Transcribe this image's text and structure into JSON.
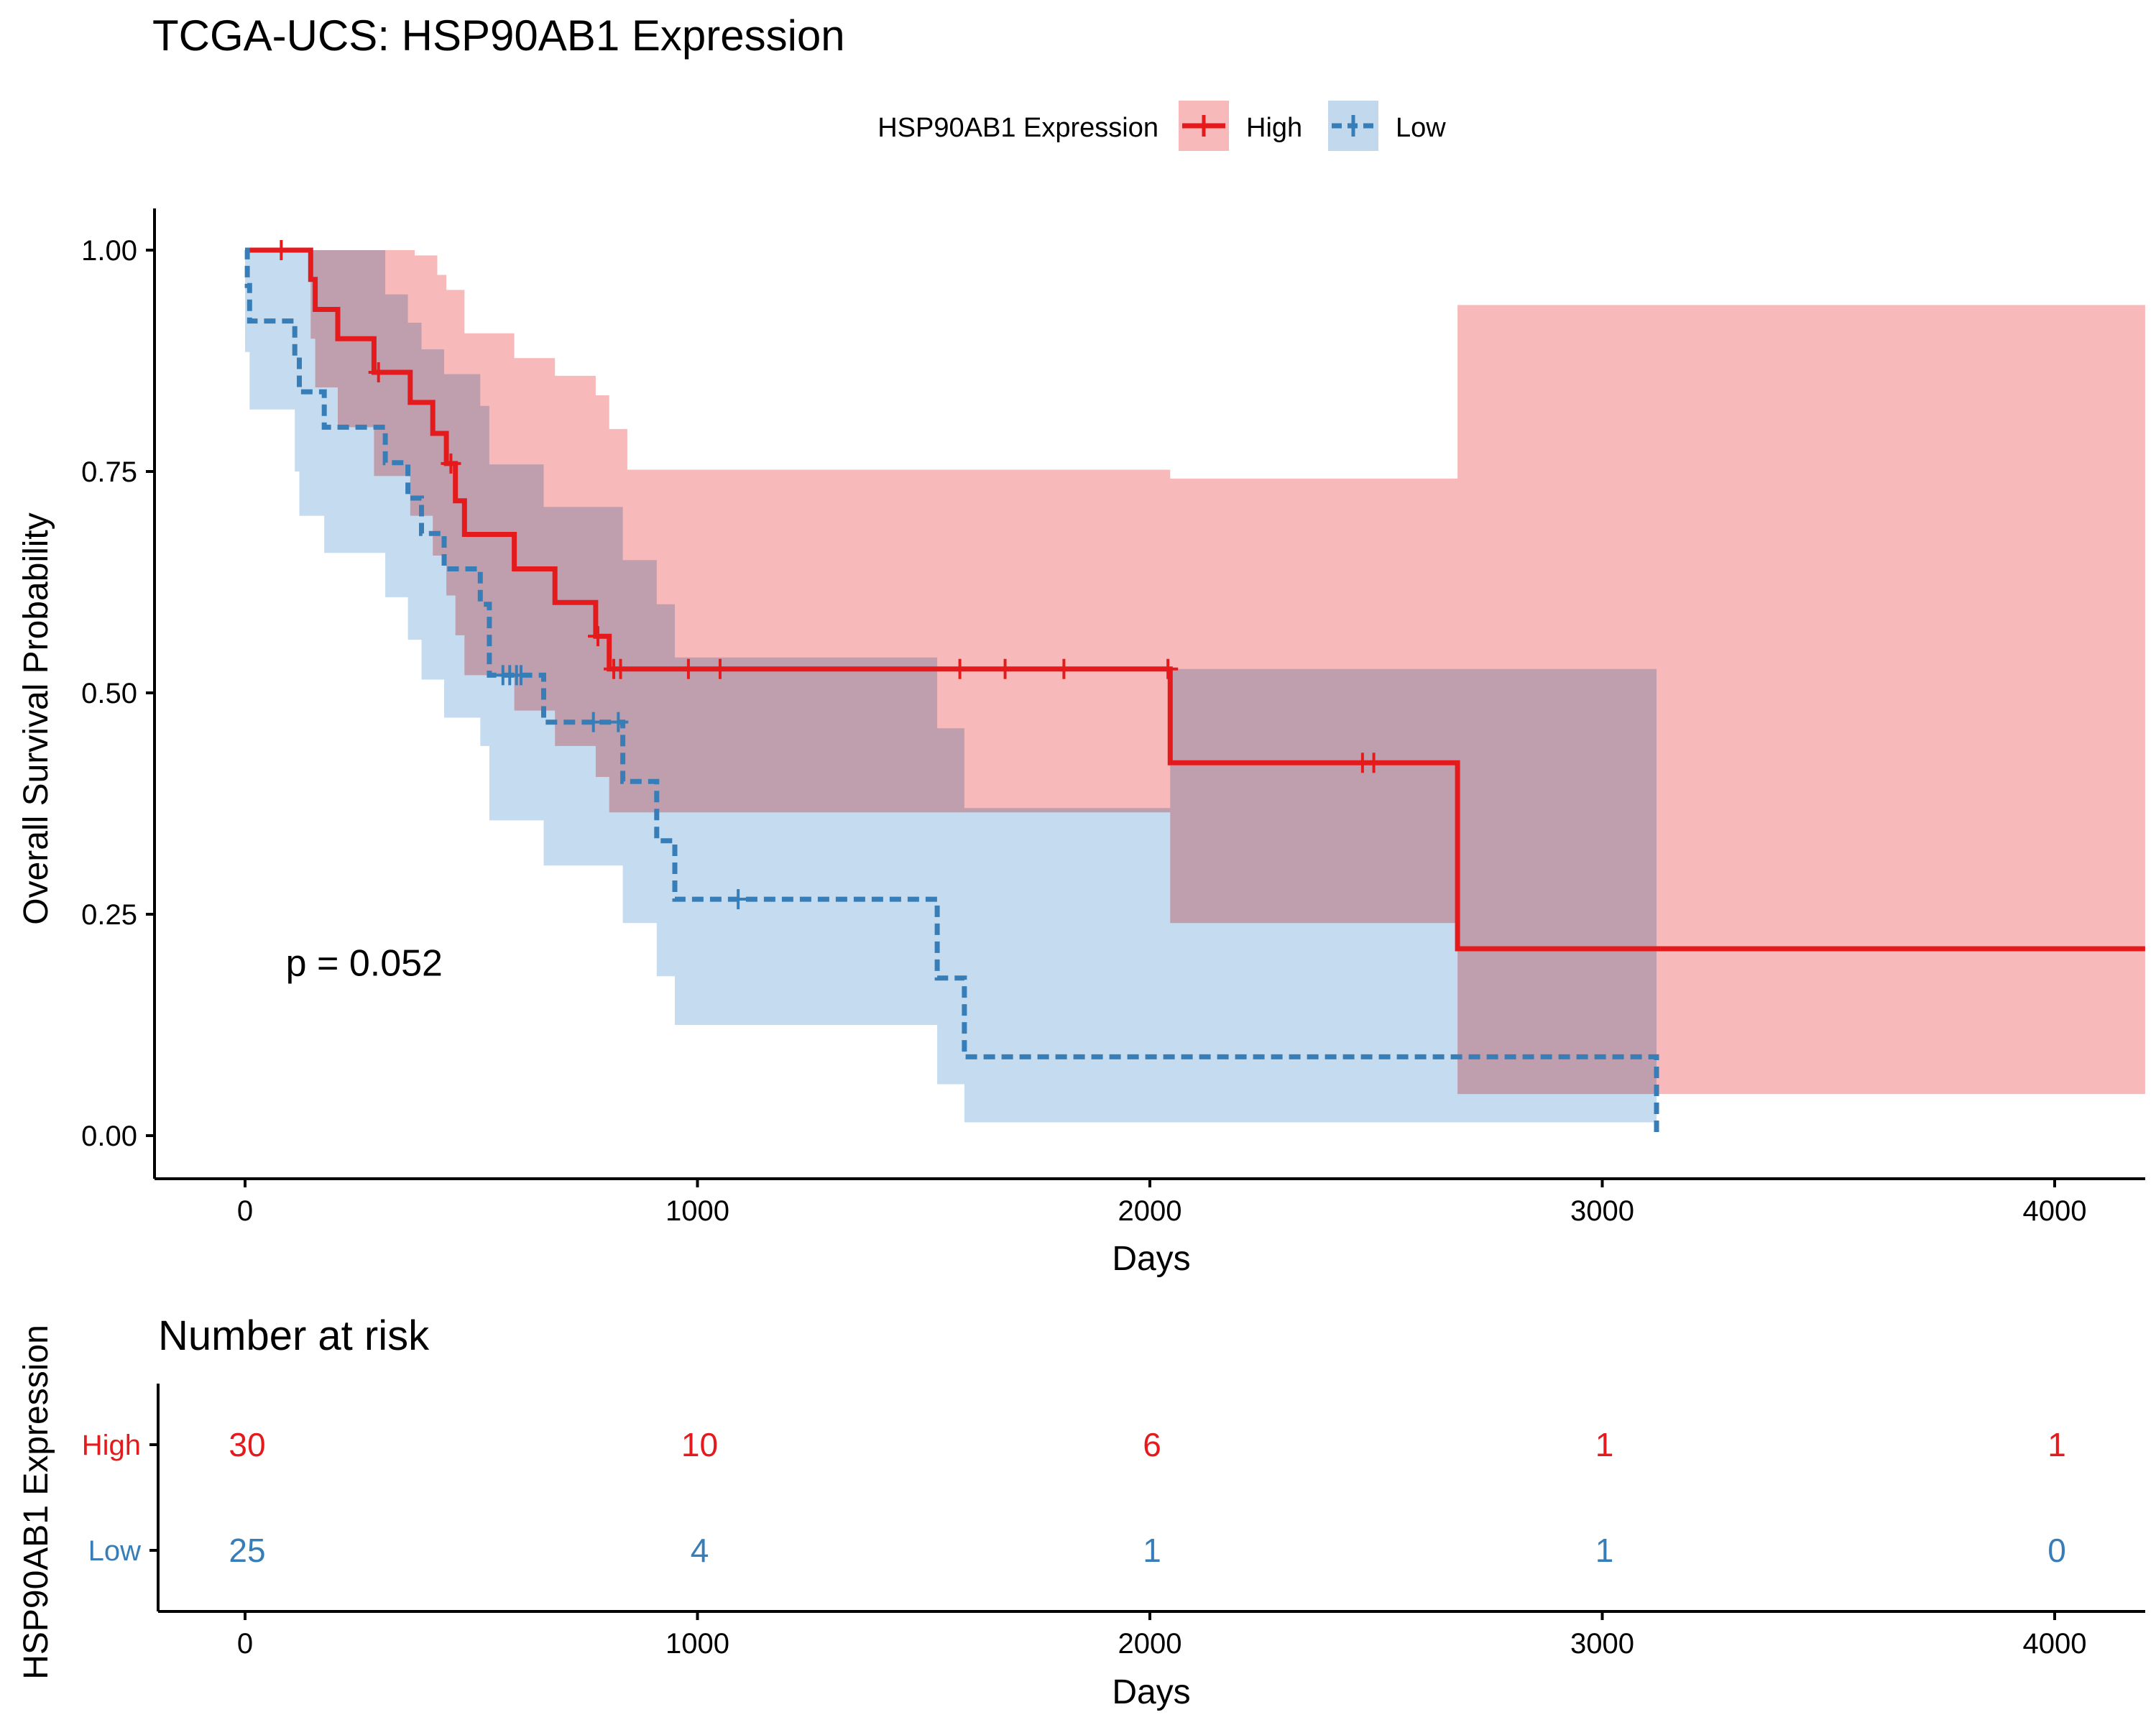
{
  "chart_data": [
    {
      "type": "line",
      "subtype": "kaplan-meier",
      "title": "TCGA-UCS: HSP90AB1 Expression",
      "xlabel": "Days",
      "ylabel": "Overall Survival Probability",
      "xlim": [
        -200,
        4200
      ],
      "ylim": [
        0,
        1
      ],
      "x_ticks": [
        0,
        1000,
        2000,
        3000,
        4000
      ],
      "y_ticks": [
        "0.00",
        "0.25",
        "0.50",
        "0.75",
        "1.00"
      ],
      "y_tick_values": [
        0,
        0.25,
        0.5,
        0.75,
        1.0
      ],
      "grid": false,
      "annotation": "p = 0.052",
      "annotation_pos": {
        "x": 90,
        "y": 0.197
      },
      "legend": {
        "title": "HSP90AB1 Expression",
        "placement": "top",
        "entries": [
          "High",
          "Low"
        ]
      },
      "series": [
        {
          "name": "High",
          "color": "#E41A1C",
          "fill": "#F08080",
          "line_style": "solid",
          "curve": [
            [
              0,
              1.0
            ],
            [
              145,
              0.967
            ],
            [
              155,
              0.933
            ],
            [
              205,
              0.9
            ],
            [
              285,
              0.862
            ],
            [
              365,
              0.828
            ],
            [
              415,
              0.793
            ],
            [
              445,
              0.759
            ],
            [
              465,
              0.717
            ],
            [
              485,
              0.679
            ],
            [
              595,
              0.64
            ],
            [
              685,
              0.602
            ],
            [
              775,
              0.564
            ],
            [
              805,
              0.527
            ],
            [
              2045,
              0.421
            ],
            [
              2680,
              0.211
            ],
            [
              4200,
              0.211
            ]
          ],
          "upper": [
            [
              0,
              1.0
            ],
            [
              205,
              1.0
            ],
            [
              375,
              0.994
            ],
            [
              425,
              0.972
            ],
            [
              445,
              0.955
            ],
            [
              485,
              0.906
            ],
            [
              595,
              0.878
            ],
            [
              685,
              0.858
            ],
            [
              775,
              0.836
            ],
            [
              805,
              0.798
            ],
            [
              845,
              0.752
            ],
            [
              2045,
              0.742
            ],
            [
              2680,
              0.938
            ],
            [
              4200,
              0.938
            ]
          ],
          "lower": [
            [
              0,
              1.0
            ],
            [
              145,
              0.9
            ],
            [
              155,
              0.845
            ],
            [
              205,
              0.8
            ],
            [
              285,
              0.745
            ],
            [
              365,
              0.7
            ],
            [
              415,
              0.655
            ],
            [
              445,
              0.61
            ],
            [
              465,
              0.565
            ],
            [
              485,
              0.52
            ],
            [
              595,
              0.48
            ],
            [
              685,
              0.44
            ],
            [
              775,
              0.405
            ],
            [
              805,
              0.365
            ],
            [
              2045,
              0.24
            ],
            [
              2680,
              0.047
            ],
            [
              4200,
              0.047
            ]
          ],
          "censor_times": [
            [
              80,
              1.0
            ],
            [
              295,
              0.862
            ],
            [
              455,
              0.759
            ],
            [
              780,
              0.564
            ],
            [
              815,
              0.527
            ],
            [
              830,
              0.527
            ],
            [
              980,
              0.527
            ],
            [
              1050,
              0.527
            ],
            [
              1580,
              0.527
            ],
            [
              1680,
              0.527
            ],
            [
              1810,
              0.527
            ],
            [
              2040,
              0.527
            ],
            [
              2470,
              0.421
            ],
            [
              2495,
              0.421
            ]
          ]
        },
        {
          "name": "Low",
          "color": "#377EB8",
          "fill": "#A6C8E6",
          "line_style": "dashed",
          "curve": [
            [
              0,
              1.0
            ],
            [
              5,
              0.96
            ],
            [
              10,
              0.92
            ],
            [
              110,
              0.88
            ],
            [
              120,
              0.84
            ],
            [
              175,
              0.8
            ],
            [
              310,
              0.76
            ],
            [
              360,
              0.72
            ],
            [
              390,
              0.68
            ],
            [
              440,
              0.64
            ],
            [
              520,
              0.6
            ],
            [
              540,
              0.52
            ],
            [
              660,
              0.467
            ],
            [
              835,
              0.4
            ],
            [
              910,
              0.333
            ],
            [
              950,
              0.267
            ],
            [
              1530,
              0.178
            ],
            [
              1590,
              0.089
            ],
            [
              3120,
              0.0
            ]
          ],
          "upper": [
            [
              0,
              1.0
            ],
            [
              310,
              0.95
            ],
            [
              360,
              0.918
            ],
            [
              390,
              0.888
            ],
            [
              440,
              0.86
            ],
            [
              520,
              0.824
            ],
            [
              540,
              0.758
            ],
            [
              660,
              0.71
            ],
            [
              835,
              0.65
            ],
            [
              910,
              0.6
            ],
            [
              950,
              0.54
            ],
            [
              1530,
              0.46
            ],
            [
              1590,
              0.37
            ],
            [
              2045,
              0.527
            ],
            [
              3120,
              0.527
            ]
          ],
          "lower": [
            [
              0,
              0.885
            ],
            [
              10,
              0.82
            ],
            [
              110,
              0.75
            ],
            [
              120,
              0.7
            ],
            [
              175,
              0.658
            ],
            [
              310,
              0.608
            ],
            [
              360,
              0.56
            ],
            [
              390,
              0.515
            ],
            [
              440,
              0.472
            ],
            [
              520,
              0.44
            ],
            [
              540,
              0.356
            ],
            [
              660,
              0.305
            ],
            [
              835,
              0.24
            ],
            [
              910,
              0.18
            ],
            [
              950,
              0.125
            ],
            [
              1530,
              0.058
            ],
            [
              1590,
              0.015
            ],
            [
              3120,
              0.015
            ]
          ],
          "censor_times": [
            [
              570,
              0.52
            ],
            [
              585,
              0.52
            ],
            [
              600,
              0.52
            ],
            [
              610,
              0.52
            ],
            [
              770,
              0.467
            ],
            [
              825,
              0.467
            ],
            [
              1090,
              0.267
            ]
          ]
        }
      ]
    },
    {
      "type": "table",
      "title": "Number at risk",
      "xlabel": "Days",
      "ylabel": "HSP90AB1 Expression",
      "xlim": [
        -200,
        4200
      ],
      "x_ticks": [
        0,
        1000,
        2000,
        3000,
        4000
      ],
      "rows": [
        {
          "name": "High",
          "color": "#E41A1C",
          "values": [
            30,
            10,
            6,
            1,
            1
          ]
        },
        {
          "name": "Low",
          "color": "#377EB8",
          "values": [
            25,
            4,
            1,
            1,
            0
          ]
        }
      ]
    }
  ]
}
